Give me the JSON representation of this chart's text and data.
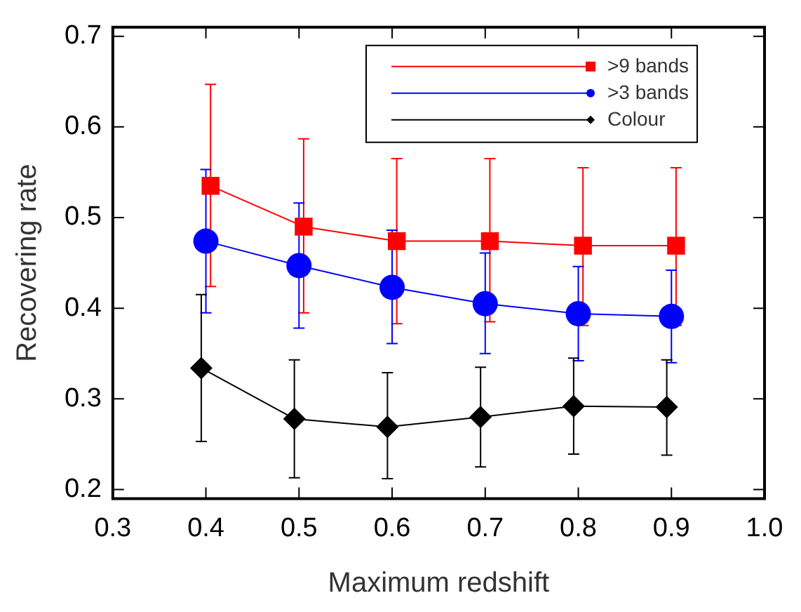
{
  "chart_data": {
    "type": "line",
    "xlabel": "Maximum redshift",
    "ylabel": "Recovering rate",
    "xlim": [
      0.3,
      1.0
    ],
    "xticks": [
      {
        "value": 0.3,
        "label": "0.3"
      },
      {
        "value": 0.4,
        "label": "0.4"
      },
      {
        "value": 0.5,
        "label": "0.5"
      },
      {
        "value": 0.6,
        "label": "0.6"
      },
      {
        "value": 0.7,
        "label": "0.7"
      },
      {
        "value": 0.8,
        "label": "0.8"
      },
      {
        "value": 0.9,
        "label": "0.9"
      },
      {
        "value": 1.0,
        "label": "1.0"
      }
    ],
    "ylim": [
      0.19,
      0.71
    ],
    "yticks": [
      0.2,
      0.3,
      0.4,
      0.5,
      0.6,
      0.7
    ],
    "grid": false,
    "legend": "top right",
    "line_style": "solid",
    "series": [
      {
        "name": ">9 bands",
        "color": "#ff0000",
        "marker": "square",
        "x": [
          0.405,
          0.505,
          0.605,
          0.705,
          0.805,
          0.905
        ],
        "values": [
          0.535,
          0.49,
          0.474,
          0.474,
          0.469,
          0.469
        ],
        "errors": [
          [
            0.424,
            0.647
          ],
          [
            0.395,
            0.587
          ],
          [
            0.383,
            0.565
          ],
          [
            0.385,
            0.565
          ],
          [
            0.381,
            0.555
          ],
          [
            0.381,
            0.555
          ]
        ]
      },
      {
        "name": ">3 bands",
        "color": "#0000ff",
        "marker": "circle",
        "x": [
          0.4,
          0.5,
          0.6,
          0.7,
          0.8,
          0.9
        ],
        "values": [
          0.474,
          0.447,
          0.423,
          0.405,
          0.394,
          0.391
        ],
        "errors": [
          [
            0.395,
            0.553
          ],
          [
            0.378,
            0.516
          ],
          [
            0.361,
            0.486
          ],
          [
            0.35,
            0.461
          ],
          [
            0.342,
            0.446
          ],
          [
            0.34,
            0.442
          ]
        ]
      },
      {
        "name": "Colour",
        "color": "#000000",
        "marker": "diamond",
        "x": [
          0.395,
          0.495,
          0.595,
          0.695,
          0.795,
          0.895
        ],
        "values": [
          0.334,
          0.278,
          0.269,
          0.28,
          0.292,
          0.291
        ],
        "errors": [
          [
            0.253,
            0.415
          ],
          [
            0.213,
            0.343
          ],
          [
            0.212,
            0.329
          ],
          [
            0.225,
            0.335
          ],
          [
            0.239,
            0.345
          ],
          [
            0.238,
            0.343
          ]
        ]
      }
    ]
  }
}
